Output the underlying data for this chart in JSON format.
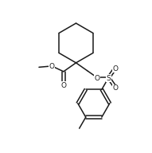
{
  "background": "#ffffff",
  "line_color": "#1a1a1a",
  "line_width": 1.1,
  "font_size": 6.5,
  "fig_width": 1.91,
  "fig_height": 1.92,
  "dpi": 100,
  "xlim": [
    0,
    10
  ],
  "ylim": [
    0,
    10
  ]
}
